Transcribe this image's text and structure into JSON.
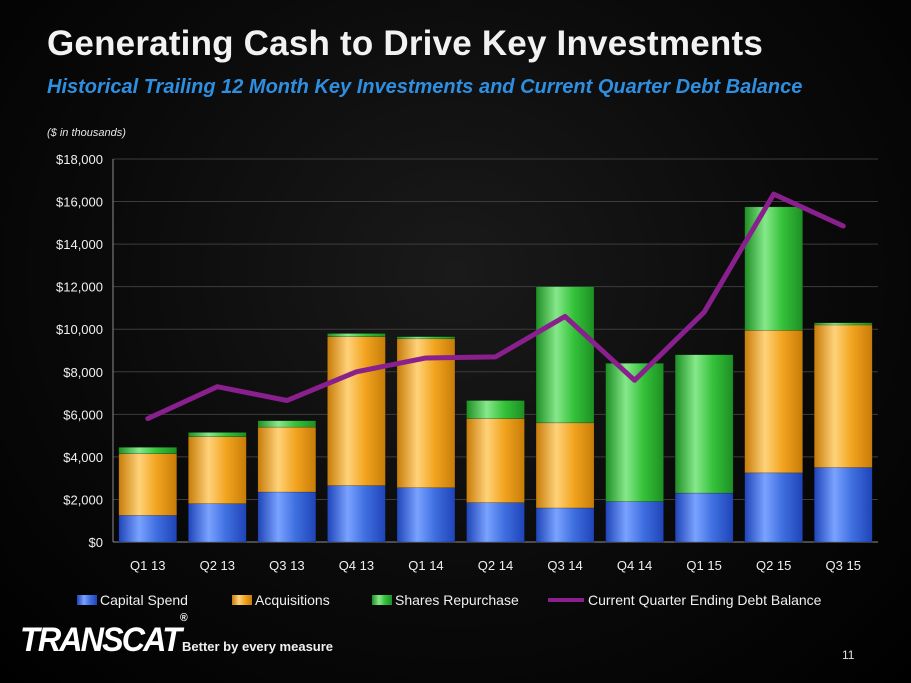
{
  "slide": {
    "title": "Generating Cash to Drive Key Investments",
    "subtitle": "Historical Trailing 12 Month Key Investments and Current Quarter Debt Balance",
    "units_note": "($ in thousands)",
    "page_number": "11"
  },
  "branding": {
    "logo_text": "TRANSCAT",
    "logo_mark": "®",
    "tagline": "Better by every measure"
  },
  "colors": {
    "capital_spend": "#3f6fe0",
    "acquisitions": "#f2a41f",
    "shares_repurchase": "#35c23a",
    "debt_line": "#8a1f8e"
  },
  "chart_data": {
    "type": "bar",
    "stacked": true,
    "title": "Historical Trailing 12 Month Key Investments and Current Quarter Debt Balance",
    "ylabel": "($ in thousands)",
    "xlabel": "",
    "ylim": [
      0,
      18000
    ],
    "yticks": [
      0,
      2000,
      4000,
      6000,
      8000,
      10000,
      12000,
      14000,
      16000,
      18000
    ],
    "ytick_labels": [
      "$0",
      "$2,000",
      "$4,000",
      "$6,000",
      "$8,000",
      "$10,000",
      "$12,000",
      "$14,000",
      "$16,000",
      "$18,000"
    ],
    "grid": true,
    "legend_position": "bottom",
    "categories": [
      "Q1 13",
      "Q2 13",
      "Q3 13",
      "Q4 13",
      "Q1 14",
      "Q2 14",
      "Q3 14",
      "Q4 14",
      "Q1 15",
      "Q2 15",
      "Q3 15"
    ],
    "series": [
      {
        "name": "Capital Spend",
        "type": "bar",
        "values": [
          1250,
          1800,
          2350,
          2650,
          2550,
          1850,
          1600,
          1900,
          2300,
          3250,
          3500
        ]
      },
      {
        "name": "Acquisitions",
        "type": "bar",
        "values": [
          2900,
          3150,
          3050,
          7000,
          7000,
          3950,
          4000,
          0,
          0,
          6700,
          6700
        ]
      },
      {
        "name": "Shares Repurchase",
        "type": "bar",
        "values": [
          300,
          200,
          300,
          150,
          100,
          850,
          6400,
          6500,
          6500,
          5800,
          100
        ]
      },
      {
        "name": "Current Quarter Ending Debt Balance",
        "type": "line",
        "values": [
          5800,
          7300,
          6650,
          8000,
          8650,
          8700,
          10600,
          7600,
          10800,
          16350,
          14850
        ]
      }
    ]
  }
}
